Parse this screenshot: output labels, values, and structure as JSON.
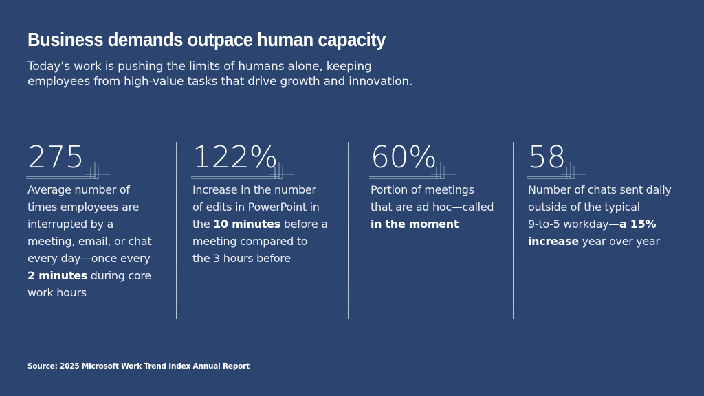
{
  "slide": {
    "background_color": "#2c4570",
    "text_color": "#ffffff",
    "title": "Business demands outpace human capacity",
    "subtitle_lines": [
      "Today’s work is pushing the limits of humans alone, keeping",
      "employees from high-value tasks that drive growth and innovation."
    ],
    "stats": [
      {
        "value": "275",
        "description_lines": [
          [
            {
              "text": "Average number of",
              "bold": false
            }
          ],
          [
            {
              "text": "times employees are",
              "bold": false
            }
          ],
          [
            {
              "text": "interrupted by a",
              "bold": false
            }
          ],
          [
            {
              "text": "meeting, email, or chat",
              "bold": false
            }
          ],
          [
            {
              "text": "every day—once every",
              "bold": false
            }
          ],
          [
            {
              "text": "2 minutes",
              "bold": true
            },
            {
              "text": " during core",
              "bold": false
            }
          ],
          [
            {
              "text": "work hours",
              "bold": false
            }
          ]
        ]
      },
      {
        "value": "122%",
        "description_lines": [
          [
            {
              "text": "Increase in the number",
              "bold": false
            }
          ],
          [
            {
              "text": "of edits in PowerPoint in",
              "bold": false
            }
          ],
          [
            {
              "text": "the ",
              "bold": false
            },
            {
              "text": "10 minutes",
              "bold": true
            },
            {
              "text": " before a",
              "bold": false
            }
          ],
          [
            {
              "text": "meeting compared to",
              "bold": false
            }
          ],
          [
            {
              "text": "the 3 hours before",
              "bold": false
            }
          ]
        ]
      },
      {
        "value": "60%",
        "description_lines": [
          [
            {
              "text": "Portion of meetings",
              "bold": false
            }
          ],
          [
            {
              "text": "that are ad hoc—called",
              "bold": false
            }
          ],
          [
            {
              "text": "in the moment",
              "bold": true
            }
          ]
        ]
      },
      {
        "value": "58",
        "description_lines": [
          [
            {
              "text": "Number of chats sent daily",
              "bold": false
            }
          ],
          [
            {
              "text": "outside of the typical",
              "bold": false
            }
          ],
          [
            {
              "text": "9-to-5 workday—",
              "bold": false
            },
            {
              "text": "a 15%",
              "bold": true
            }
          ],
          [
            {
              "text": "increase",
              "bold": true
            },
            {
              "text": " year over year",
              "bold": false
            }
          ]
        ]
      }
    ],
    "source": "Source: 2025 Microsoft Work Trend Index Annual Report"
  }
}
